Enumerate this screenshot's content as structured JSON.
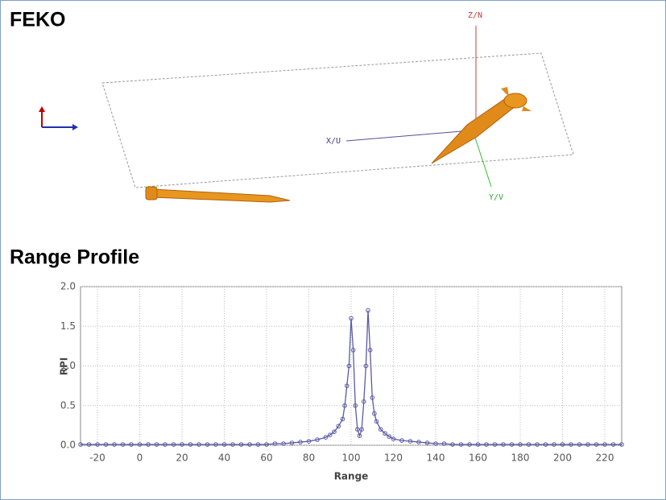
{
  "title": "FEKO",
  "view_labels": {
    "z": "Z/N",
    "x": "X/U",
    "y": "Y/V"
  },
  "chart_data": {
    "type": "line",
    "title": "Range Profile",
    "xlabel": "Range",
    "ylabel": "RPI",
    "x": [
      -28,
      -24,
      -20,
      -16,
      -12,
      -8,
      -4,
      0,
      4,
      8,
      12,
      16,
      20,
      24,
      28,
      32,
      36,
      40,
      44,
      48,
      52,
      56,
      60,
      64,
      68,
      72,
      76,
      80,
      84,
      88,
      90,
      92,
      94,
      96,
      97,
      98,
      99,
      100,
      101,
      102,
      103,
      104,
      105,
      106,
      107,
      108,
      109,
      110,
      111,
      112,
      114,
      116,
      118,
      120,
      124,
      128,
      132,
      136,
      140,
      144,
      148,
      152,
      156,
      160,
      164,
      168,
      172,
      176,
      180,
      184,
      188,
      192,
      196,
      200,
      204,
      208,
      212,
      216,
      220,
      224,
      228
    ],
    "series": [
      {
        "color": "#5a5aa6",
        "values": [
          0.01,
          0.01,
          0.01,
          0.01,
          0.01,
          0.01,
          0.01,
          0.01,
          0.01,
          0.01,
          0.01,
          0.01,
          0.01,
          0.01,
          0.01,
          0.01,
          0.01,
          0.01,
          0.01,
          0.01,
          0.01,
          0.01,
          0.01,
          0.02,
          0.02,
          0.03,
          0.04,
          0.05,
          0.07,
          0.1,
          0.13,
          0.17,
          0.24,
          0.33,
          0.5,
          0.75,
          1.0,
          1.6,
          1.2,
          0.5,
          0.2,
          0.12,
          0.2,
          0.55,
          1.0,
          1.7,
          1.2,
          0.6,
          0.4,
          0.3,
          0.2,
          0.15,
          0.11,
          0.08,
          0.06,
          0.05,
          0.04,
          0.03,
          0.02,
          0.02,
          0.01,
          0.01,
          0.01,
          0.01,
          0.01,
          0.01,
          0.01,
          0.01,
          0.01,
          0.01,
          0.01,
          0.01,
          0.01,
          0.01,
          0.01,
          0.01,
          0.01,
          0.01,
          0.01,
          0.01,
          0.01
        ]
      }
    ],
    "xlim": [
      -28,
      228
    ],
    "ylim": [
      0,
      2
    ],
    "xticks": [
      -20,
      0,
      20,
      40,
      60,
      80,
      100,
      120,
      140,
      160,
      180,
      200,
      220
    ],
    "yticks": [
      {
        "value": 0,
        "label": "0.0"
      },
      {
        "value": 0.5,
        "label": "0.5"
      },
      {
        "value": 1,
        "label": "1.0"
      },
      {
        "value": 1.5,
        "label": "1.5"
      },
      {
        "value": 2,
        "label": "2.0"
      }
    ],
    "grid": true
  }
}
